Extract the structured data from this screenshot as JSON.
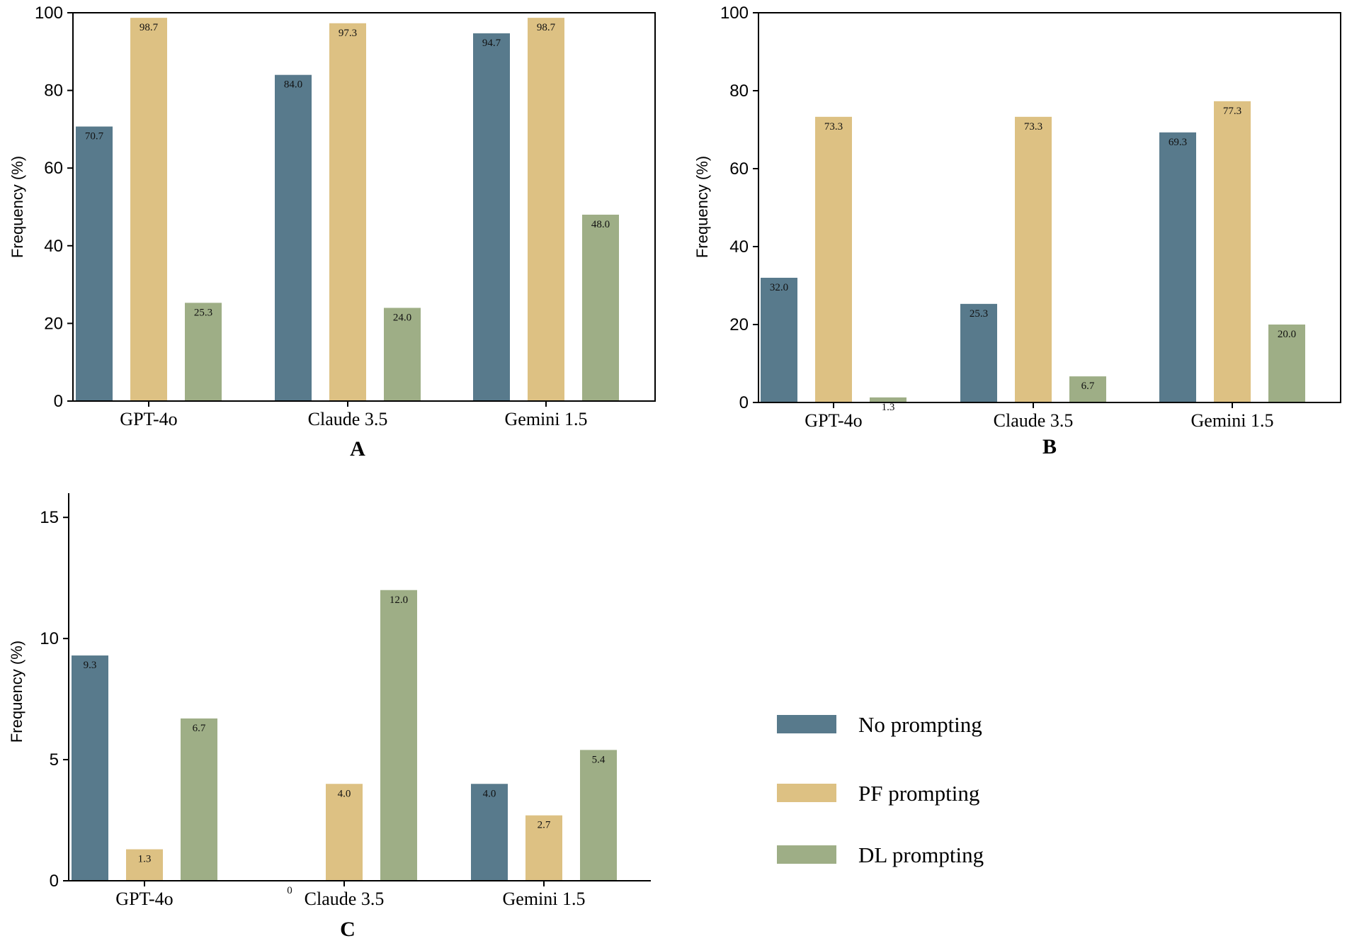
{
  "colors": {
    "no_prompting": "#587a8c",
    "pf_prompting": "#ddc183",
    "dl_prompting": "#9eae86",
    "axis": "#000000"
  },
  "legend": {
    "items": [
      {
        "label": "No prompting",
        "color_key": "no_prompting"
      },
      {
        "label": "PF prompting",
        "color_key": "pf_prompting"
      },
      {
        "label": "DL prompting",
        "color_key": "dl_prompting"
      }
    ]
  },
  "chart_data": [
    {
      "panel": "A",
      "type": "bar",
      "categories": [
        "GPT-4o",
        "Claude 3.5",
        "Gemini 1.5"
      ],
      "series": [
        {
          "name": "No prompting",
          "values": [
            70.7,
            84.0,
            94.7
          ],
          "labels": [
            "70.7",
            "84.0",
            "94.7"
          ]
        },
        {
          "name": "PF prompting",
          "values": [
            98.7,
            97.3,
            98.7
          ],
          "labels": [
            "98.7",
            "97.3",
            "98.7"
          ]
        },
        {
          "name": "DL prompting",
          "values": [
            25.3,
            24.0,
            48.0
          ],
          "labels": [
            "25.3",
            "24.0",
            "48.0"
          ]
        }
      ],
      "ylabel": "Frequency  (%)",
      "ylim": [
        0,
        100
      ],
      "yticks": [
        0,
        20,
        40,
        60,
        80,
        100
      ],
      "ytick_labels": [
        "0",
        "20",
        "40",
        "60",
        "80",
        "100"
      ],
      "frame": "box"
    },
    {
      "panel": "B",
      "type": "bar",
      "categories": [
        "GPT-4o",
        "Claude 3.5",
        "Gemini 1.5"
      ],
      "series": [
        {
          "name": "No prompting",
          "values": [
            32.0,
            25.3,
            69.3
          ],
          "labels": [
            "32.0",
            "25.3",
            "69.3"
          ]
        },
        {
          "name": "PF prompting",
          "values": [
            73.3,
            73.3,
            77.3
          ],
          "labels": [
            "73.3",
            "73.3",
            "77.3"
          ]
        },
        {
          "name": "DL prompting",
          "values": [
            1.3,
            6.7,
            20.0
          ],
          "labels": [
            "1.3",
            "6.7",
            "20.0"
          ]
        }
      ],
      "ylabel": "Frequency  (%)",
      "ylim": [
        0,
        100
      ],
      "yticks": [
        0,
        20,
        40,
        60,
        80,
        100
      ],
      "ytick_labels": [
        "0",
        "20",
        "40",
        "60",
        "80",
        "100"
      ],
      "frame": "box"
    },
    {
      "panel": "C",
      "type": "bar",
      "categories": [
        "GPT-4o",
        "Claude 3.5",
        "Gemini 1.5"
      ],
      "series": [
        {
          "name": "No prompting",
          "values": [
            9.3,
            0,
            4.0
          ],
          "labels": [
            "9.3",
            "0",
            "4.0"
          ]
        },
        {
          "name": "PF prompting",
          "values": [
            1.3,
            4.0,
            2.7
          ],
          "labels": [
            "1.3",
            "4.0",
            "2.7"
          ]
        },
        {
          "name": "DL prompting",
          "values": [
            6.7,
            12.0,
            5.4
          ],
          "labels": [
            "6.7",
            "12.0",
            "5.4"
          ]
        }
      ],
      "ylabel": "Frequency  (%)",
      "ylim": [
        0,
        16
      ],
      "yticks": [
        0,
        5,
        10,
        15
      ],
      "ytick_labels": [
        "0",
        "5",
        "10",
        "15"
      ],
      "frame": "open"
    }
  ]
}
